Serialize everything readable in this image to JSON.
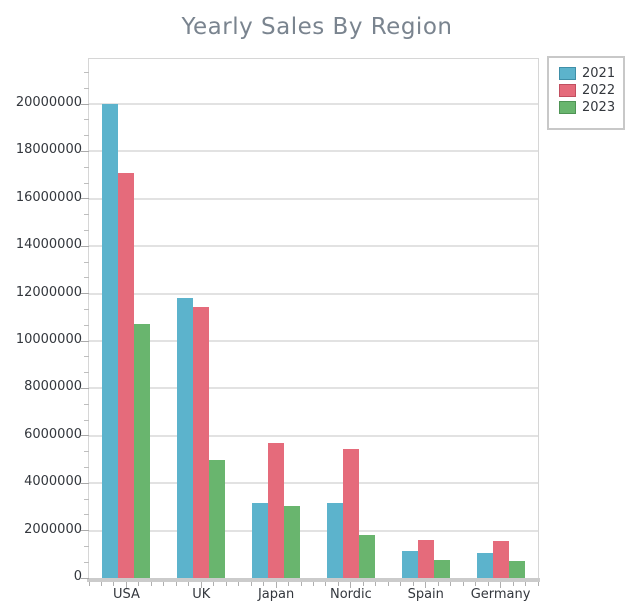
{
  "chart_data": {
    "type": "bar",
    "title": "Yearly Sales By Region",
    "xlabel": "",
    "ylabel": "",
    "categories": [
      "USA",
      "UK",
      "Japan",
      "Nordic",
      "Spain",
      "Germany"
    ],
    "series": [
      {
        "name": "2021",
        "color": "#5CB3CC",
        "border": "#3F8FA8",
        "values": [
          20000000,
          11800000,
          3150000,
          3150000,
          1150000,
          1050000
        ]
      },
      {
        "name": "2022",
        "color": "#E56B7B",
        "border": "#C14F60",
        "values": [
          17100000,
          11450000,
          5700000,
          5450000,
          1600000,
          1550000
        ]
      },
      {
        "name": "2023",
        "color": "#69B56E",
        "border": "#4F9455",
        "values": [
          10700000,
          5000000,
          3050000,
          1800000,
          750000,
          720000
        ]
      }
    ],
    "ylim": [
      0,
      21900000
    ],
    "ytick_step": 2000000,
    "yticks": [
      0,
      2000000,
      4000000,
      6000000,
      8000000,
      10000000,
      12000000,
      14000000,
      16000000,
      18000000,
      20000000
    ],
    "grid": "horizontal-major",
    "legend_position": "top-right"
  },
  "theme": {
    "title_color": "#7A848F",
    "axis_label_color": "#33373D",
    "gridline_color": "#E2E2E2",
    "frame_color": "#D6D6D6",
    "baseline_color": "#CBCBCB",
    "legend_border_color": "#C8C8C8",
    "background": "#FFFFFF"
  }
}
